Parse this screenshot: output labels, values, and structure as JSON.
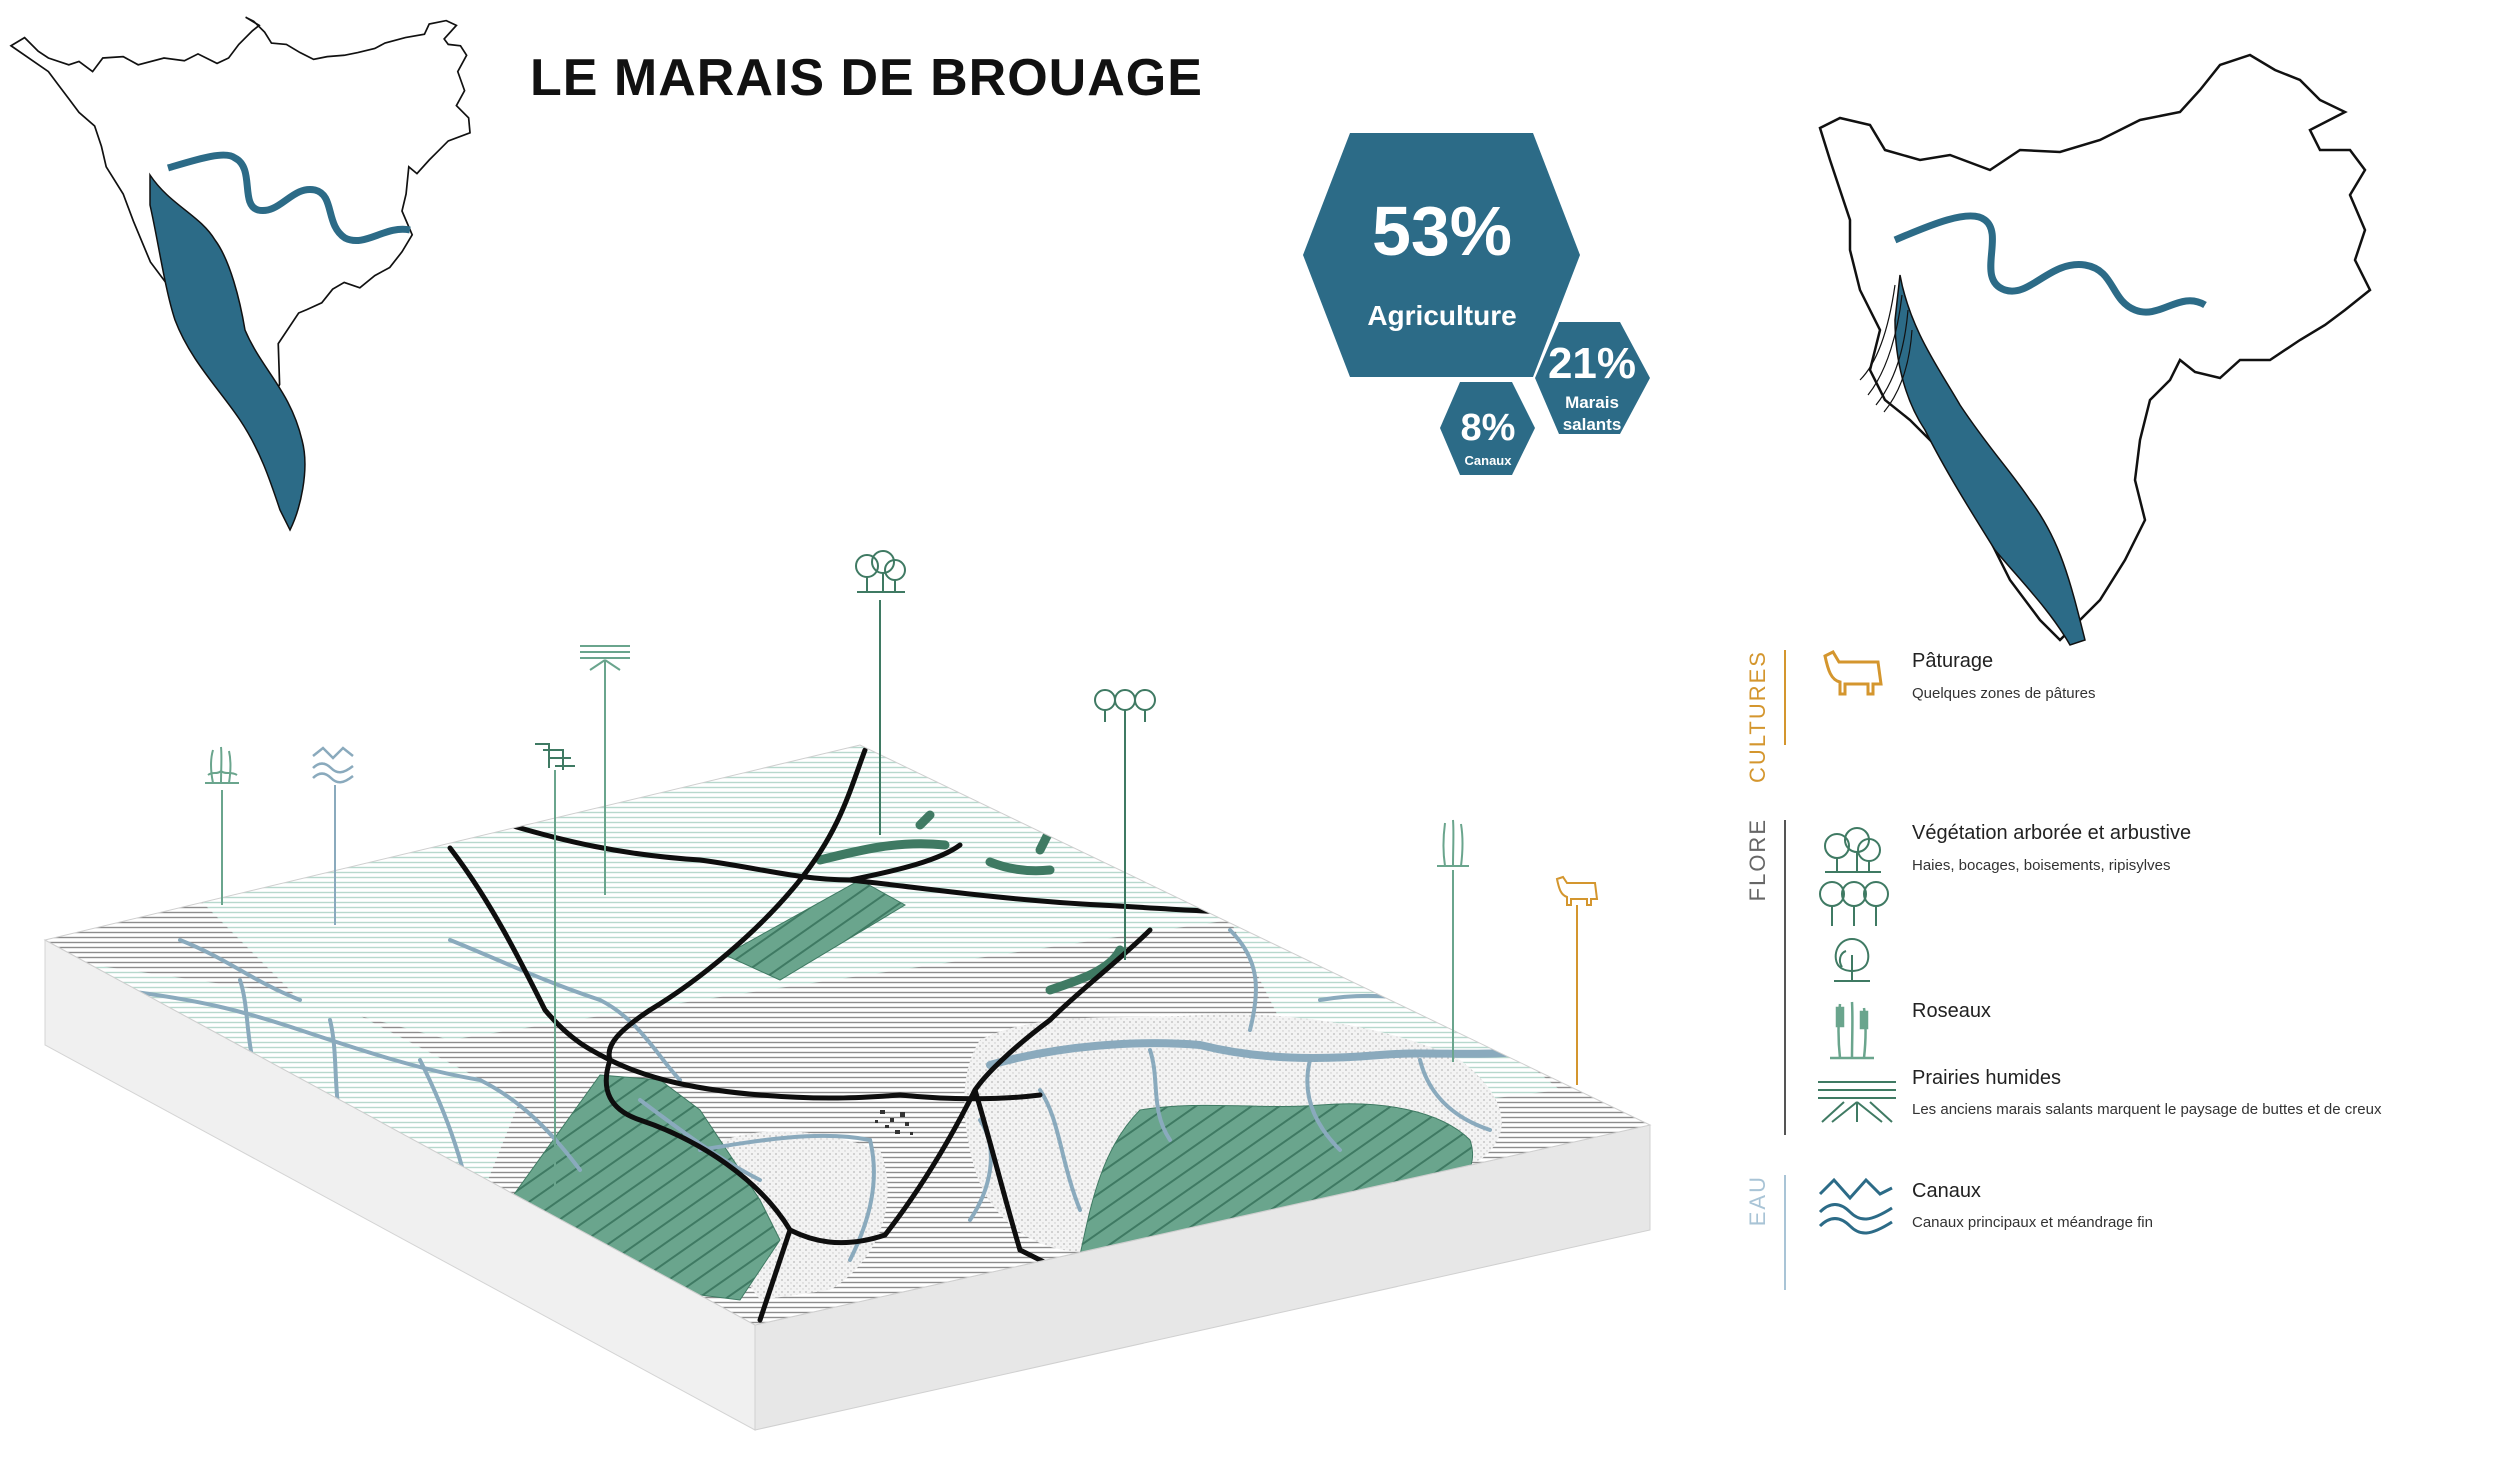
{
  "title": "LE MARAIS DE BROUAGE",
  "stats": {
    "agriculture": {
      "value": "53%",
      "label": "Agriculture"
    },
    "marais": {
      "value": "21%",
      "label_line1": "Marais",
      "label_line2": "salants"
    },
    "canaux": {
      "value": "8%",
      "label": "Canaux"
    }
  },
  "colors": {
    "teal": "#2c6b87",
    "green": "#6aa58d",
    "water": "#8aaabd",
    "amber": "#d4962e",
    "eau_label": "#a9c4d6"
  },
  "legend": {
    "cultures": {
      "category": "CULTURES",
      "items": [
        {
          "icon": "cow-icon",
          "title": "Pâturage",
          "subtitle": "Quelques zones de pâtures"
        }
      ]
    },
    "flore": {
      "category": "FLORE",
      "items": [
        {
          "icon": "trees-icon",
          "title": "Végétation arborée et arbustive",
          "subtitle": "Haies, bocages, boisements, ripisylves"
        },
        {
          "icon": "reeds-icon",
          "title": "Roseaux",
          "subtitle": ""
        },
        {
          "icon": "wet-meadow-icon",
          "title": "Prairies humides",
          "subtitle": "Les anciens marais salants marquent le paysage de buttes et de creux"
        }
      ]
    },
    "eau": {
      "category": "EAU",
      "items": [
        {
          "icon": "waves-icon",
          "title": "Canaux",
          "subtitle": "Canaux principaux et méandrage fin"
        }
      ]
    }
  }
}
